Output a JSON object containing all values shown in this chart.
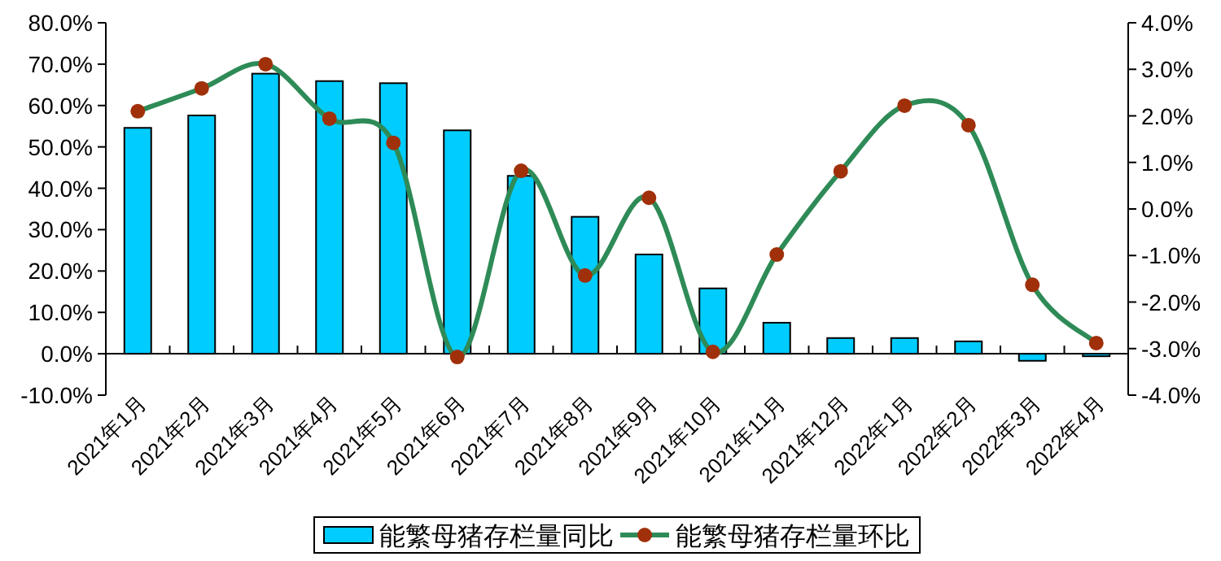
{
  "chart_data": {
    "type": "bar",
    "categories": [
      "2021年1月",
      "2021年2月",
      "2021年3月",
      "2021年4月",
      "2021年5月",
      "2021年6月",
      "2021年7月",
      "2021年8月",
      "2021年9月",
      "2021年10月",
      "2021年11月",
      "2021年12月",
      "2022年1月",
      "2022年2月",
      "2022年3月",
      "2022年4月"
    ],
    "series": [
      {
        "name": "能繁母猪存栏量同比",
        "color": "#00ccff",
        "values": [
          54.6,
          57.6,
          67.7,
          65.9,
          65.4,
          54.0,
          43.0,
          33.1,
          24.0,
          15.8,
          7.5,
          3.8,
          3.8,
          3.0,
          -1.7,
          -0.6
        ]
      },
      {
        "name": "能繁母猪存栏量环比",
        "type": "line",
        "axis": "y2",
        "color": "#2e8b57",
        "values": [
          2.1,
          2.59,
          3.11,
          1.94,
          1.42,
          -3.18,
          0.82,
          -1.43,
          0.24,
          -3.07,
          -0.98,
          0.81,
          2.22,
          1.8,
          -1.63,
          -2.88
        ]
      }
    ],
    "ylim": [
      -10,
      80
    ],
    "yticks": [
      {
        "value": -10,
        "label": "-10.0%"
      },
      {
        "value": 0,
        "label": "0.0%"
      },
      {
        "value": 10,
        "label": "10.0%"
      },
      {
        "value": 20,
        "label": "20.0%"
      },
      {
        "value": 30,
        "label": "30.0%"
      },
      {
        "value": 40,
        "label": "40.0%"
      },
      {
        "value": 50,
        "label": "50.0%"
      },
      {
        "value": 60,
        "label": "60.0%"
      },
      {
        "value": 70,
        "label": "70.0%"
      },
      {
        "value": 80,
        "label": "80.0%"
      }
    ],
    "y2lim": [
      -4,
      4
    ],
    "y2ticks": [
      {
        "value": -4,
        "label": "-4.0%"
      },
      {
        "value": -3,
        "label": "-3.0%"
      },
      {
        "value": -2,
        "label": "-2.0%"
      },
      {
        "value": -1,
        "label": "-1.0%"
      },
      {
        "value": 0,
        "label": "0.0%"
      },
      {
        "value": 1,
        "label": "1.0%"
      },
      {
        "value": 2,
        "label": "2.0%"
      },
      {
        "value": 3,
        "label": "3.0%"
      },
      {
        "value": 4,
        "label": "4.0%"
      }
    ],
    "marker": "circle",
    "grid": false,
    "legend": "bottom"
  }
}
